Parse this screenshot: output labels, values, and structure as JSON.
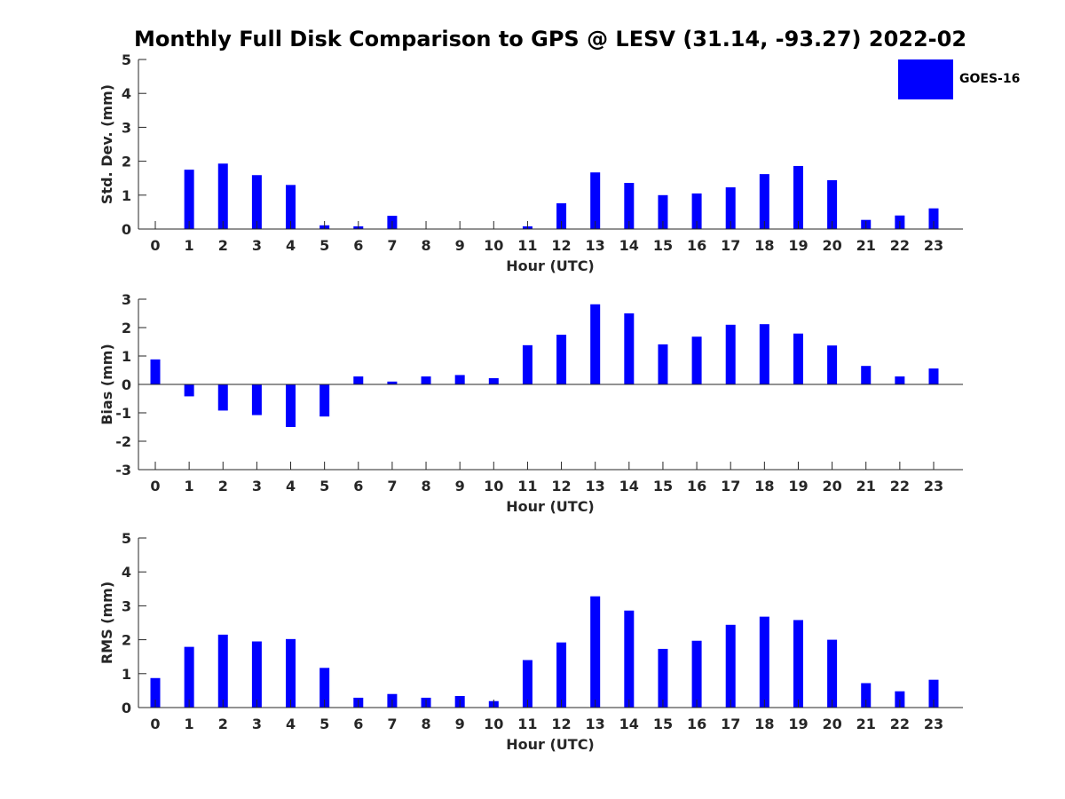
{
  "title": "Monthly Full Disk Comparison to GPS @ LESV (31.14, -93.27) 2022-02",
  "legend": {
    "label": "GOES-16",
    "color": "#0000ff"
  },
  "chart_data": [
    {
      "type": "bar",
      "categories": [
        "0",
        "1",
        "2",
        "3",
        "4",
        "5",
        "6",
        "7",
        "8",
        "9",
        "10",
        "11",
        "12",
        "13",
        "14",
        "15",
        "16",
        "17",
        "18",
        "19",
        "20",
        "21",
        "22",
        "23"
      ],
      "series": [
        {
          "name": "GOES-16",
          "values": [
            0,
            1.75,
            1.93,
            1.59,
            1.3,
            0.11,
            0.08,
            0.39,
            0,
            0,
            0,
            0.08,
            0.76,
            1.67,
            1.36,
            1.0,
            1.05,
            1.23,
            1.62,
            1.86,
            1.44,
            0.27,
            0.4,
            0.61
          ]
        }
      ],
      "xlabel": "Hour (UTC)",
      "ylabel": "Std. Dev. (mm)",
      "ylim": [
        0,
        5
      ],
      "yticks": [
        0,
        1,
        2,
        3,
        4,
        5
      ],
      "color": "#0000ff",
      "grid": false
    },
    {
      "type": "bar",
      "categories": [
        "0",
        "1",
        "2",
        "3",
        "4",
        "5",
        "6",
        "7",
        "8",
        "9",
        "10",
        "11",
        "12",
        "13",
        "14",
        "15",
        "16",
        "17",
        "18",
        "19",
        "20",
        "21",
        "22",
        "23"
      ],
      "series": [
        {
          "name": "GOES-16",
          "values": [
            0.88,
            -0.42,
            -0.92,
            -1.08,
            -1.5,
            -1.13,
            0.28,
            0.1,
            0.28,
            0.33,
            0.22,
            1.38,
            1.75,
            2.82,
            2.5,
            1.41,
            1.68,
            2.1,
            2.12,
            1.79,
            1.37,
            0.65,
            0.28,
            0.56
          ]
        }
      ],
      "xlabel": "Hour (UTC)",
      "ylabel": "Bias (mm)",
      "ylim": [
        -3,
        3
      ],
      "yticks": [
        -3,
        -2,
        -1,
        0,
        1,
        2,
        3
      ],
      "color": "#0000ff",
      "grid": false
    },
    {
      "type": "bar",
      "categories": [
        "0",
        "1",
        "2",
        "3",
        "4",
        "5",
        "6",
        "7",
        "8",
        "9",
        "10",
        "11",
        "12",
        "13",
        "14",
        "15",
        "16",
        "17",
        "18",
        "19",
        "20",
        "21",
        "22",
        "23"
      ],
      "series": [
        {
          "name": "GOES-16",
          "values": [
            0.87,
            1.79,
            2.15,
            1.95,
            2.02,
            1.17,
            0.29,
            0.4,
            0.29,
            0.34,
            0.19,
            1.4,
            1.92,
            3.28,
            2.86,
            1.73,
            1.97,
            2.44,
            2.68,
            2.58,
            2.0,
            0.72,
            0.48,
            0.82
          ]
        }
      ],
      "xlabel": "Hour (UTC)",
      "ylabel": "RMS (mm)",
      "ylim": [
        0,
        5
      ],
      "yticks": [
        0,
        1,
        2,
        3,
        4,
        5
      ],
      "color": "#0000ff",
      "grid": false
    }
  ]
}
